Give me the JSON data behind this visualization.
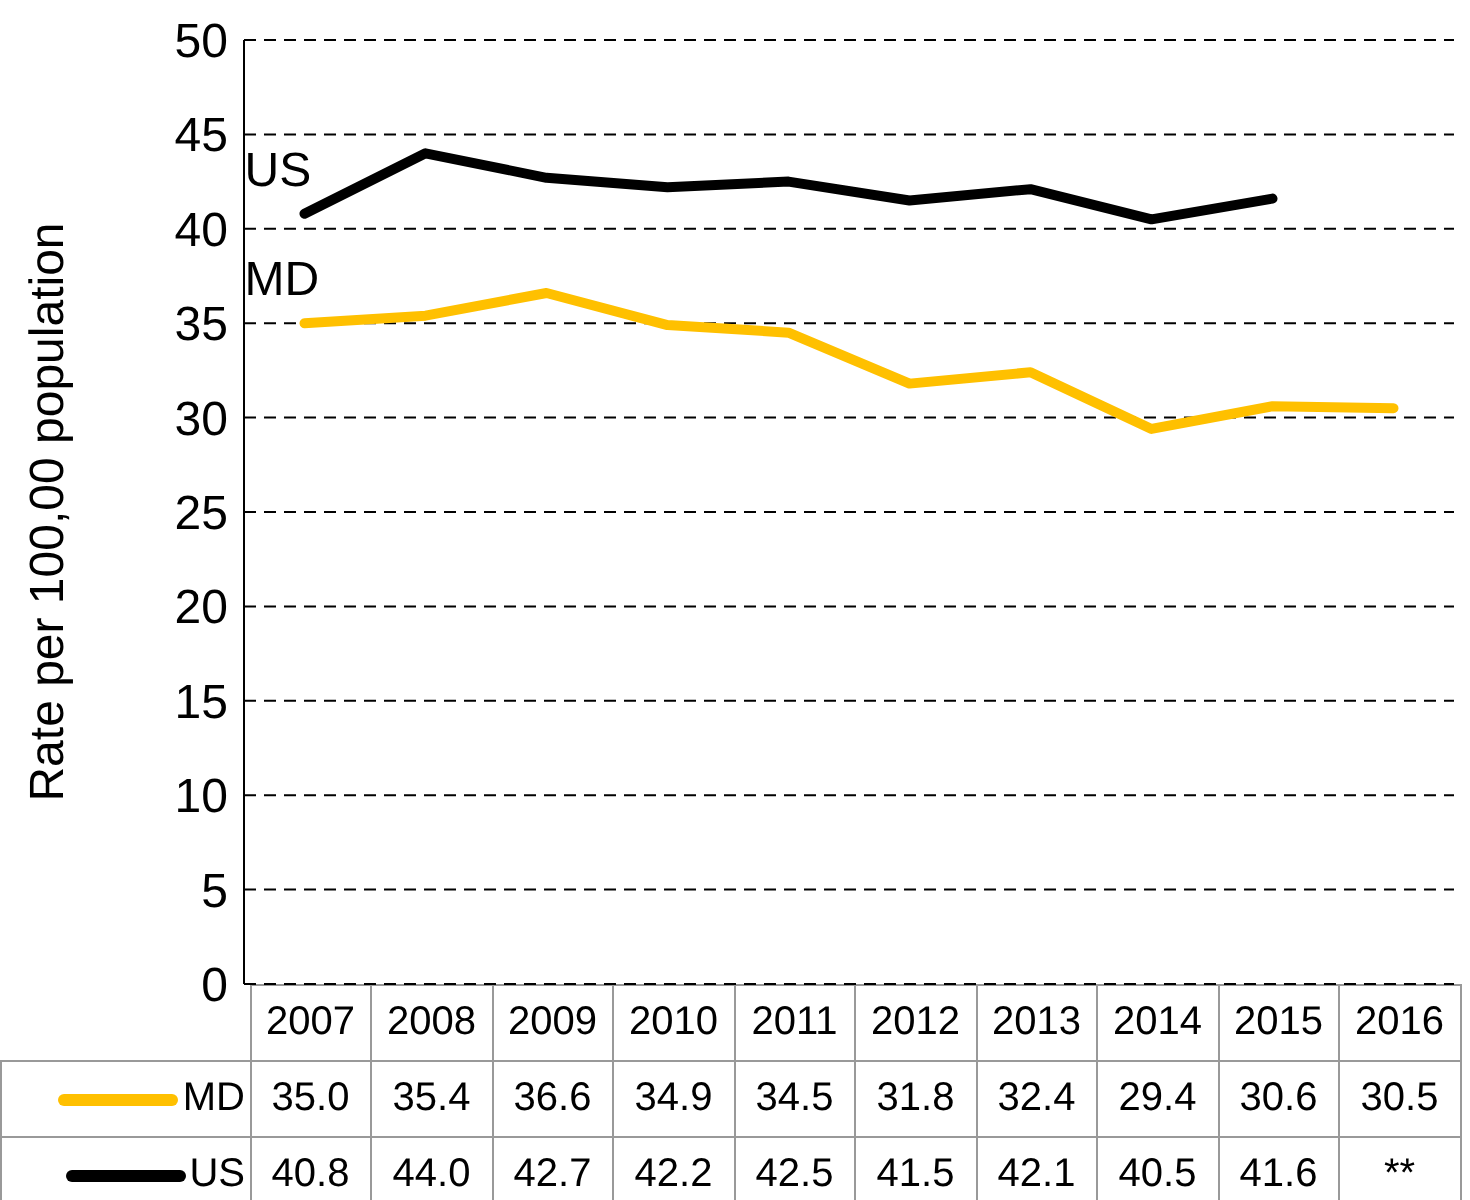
{
  "chart_data": {
    "type": "line",
    "ylabel": "Rate per 100,00 population",
    "categories": [
      "2007",
      "2008",
      "2009",
      "2010",
      "2011",
      "2012",
      "2013",
      "2014",
      "2015",
      "2016"
    ],
    "series": [
      {
        "name": "US",
        "color": "#000000",
        "values": [
          40.8,
          44.0,
          42.7,
          42.2,
          42.5,
          41.5,
          42.1,
          40.5,
          41.6,
          null
        ],
        "value_labels": [
          "40.8",
          "44.0",
          "42.7",
          "42.2",
          "42.5",
          "41.5",
          "42.1",
          "40.5",
          "41.6",
          "**"
        ]
      },
      {
        "name": "MD",
        "color": "#ffc000",
        "values": [
          35.0,
          35.4,
          36.6,
          34.9,
          34.5,
          31.8,
          32.4,
          29.4,
          30.6,
          30.5
        ],
        "value_labels": [
          "35.0",
          "35.4",
          "36.6",
          "34.9",
          "34.5",
          "31.8",
          "32.4",
          "29.4",
          "30.6",
          "30.5"
        ]
      }
    ],
    "ylim": [
      0,
      50
    ],
    "yticks": [
      0,
      5,
      10,
      15,
      20,
      25,
      30,
      35,
      40,
      45,
      50
    ],
    "grid": "y",
    "legend": "bottom",
    "marker": "none",
    "line_style": "solid"
  }
}
